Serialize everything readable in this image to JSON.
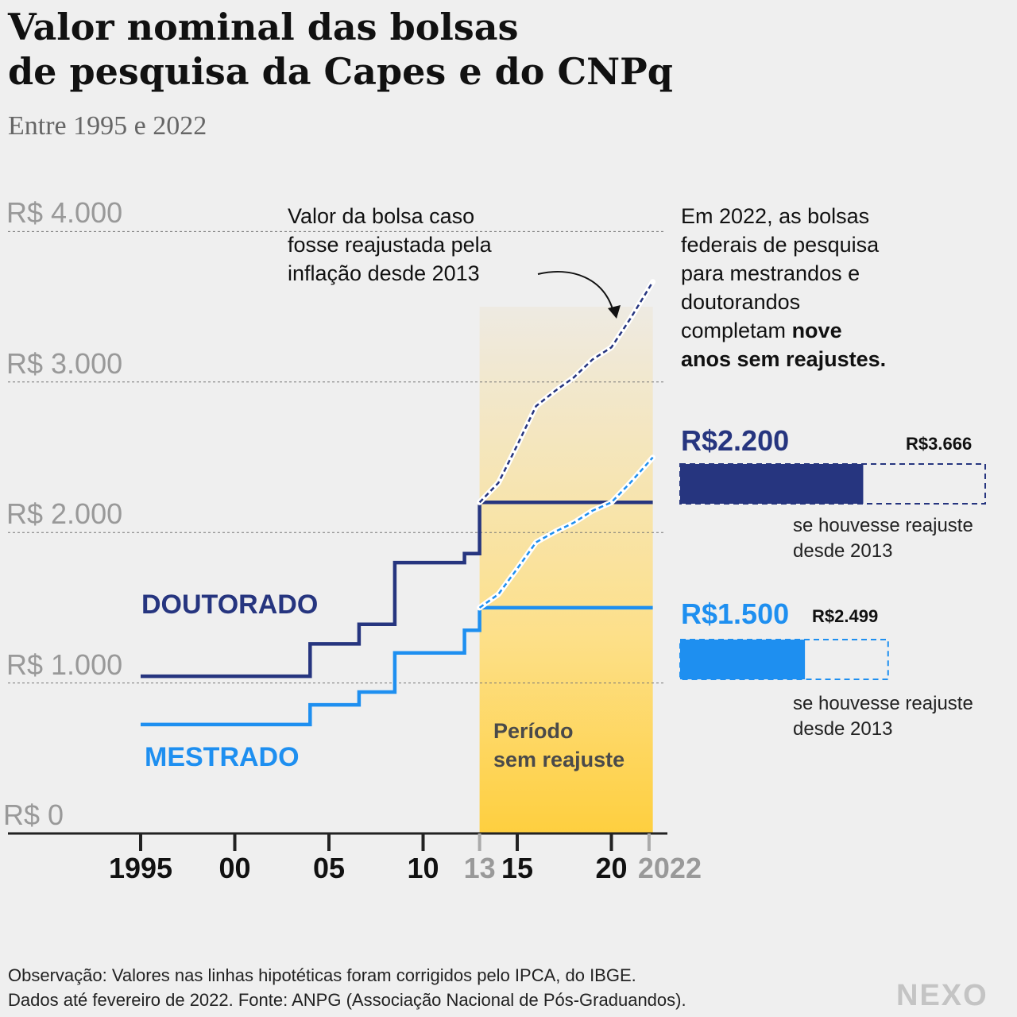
{
  "title_line1": "Valor nominal das bolsas",
  "title_line2": "de pesquisa da Capes e do CNPq",
  "subtitle": "Entre 1995 e 2022",
  "annotation": {
    "line1": "Valor da bolsa caso",
    "line2": "fosse reajustada pela",
    "line3": "inflação desde 2013"
  },
  "side_note": {
    "line1": "Em 2022, as bolsas",
    "line2": "federais de pesquisa",
    "line3": "para mestrandos e",
    "line4": "doutorandos",
    "line5_normal": "completam ",
    "line5_bold": "nove",
    "line6_bold": "anos sem reajustes."
  },
  "labels": {
    "doutorado": "DOUTORADO",
    "mestrado": "MESTRADO",
    "period_line1": "Período",
    "period_line2": "sem reajuste"
  },
  "comparison": {
    "doutorado": {
      "value_label": "R$2.200",
      "adjusted_label": "R$3.666",
      "value": 2200,
      "adjusted": 3666,
      "note1": "se houvesse reajuste",
      "note2": "desde 2013"
    },
    "mestrado": {
      "value_label": "R$1.500",
      "adjusted_label": "R$2.499",
      "value": 1500,
      "adjusted": 2499,
      "note1": "se houvesse reajuste",
      "note2": "desde 2013"
    }
  },
  "footer_line1": "Observação: Valores nas linhas hipotéticas foram corrigidos pelo IPCA, do IBGE.",
  "footer_line2": "Dados até fevereiro de 2022. Fonte: ANPG (Associação Nacional de Pós-Graduandos).",
  "logo": "NEXO",
  "colors": {
    "doutorado": "#26357f",
    "mestrado": "#1e8ff0",
    "period_top": "#eeeae2",
    "period_bottom": "#fecf3f",
    "grid": "#777777",
    "axis": "#222222"
  },
  "chart_data": {
    "type": "line",
    "title": "Valor nominal das bolsas de pesquisa da Capes e do CNPq",
    "subtitle": "Entre 1995 e 2022",
    "y_ticks": [
      {
        "value": 0,
        "label": "R$ 0"
      },
      {
        "value": 1000,
        "label": "R$ 1.000"
      },
      {
        "value": 2000,
        "label": "R$ 2.000"
      },
      {
        "value": 3000,
        "label": "R$ 3.000"
      },
      {
        "value": 4000,
        "label": "R$ 4.000"
      }
    ],
    "x_ticks": [
      {
        "value": 1995,
        "label": "1995",
        "muted": false
      },
      {
        "value": 2000,
        "label": "00",
        "muted": false
      },
      {
        "value": 2005,
        "label": "05",
        "muted": false
      },
      {
        "value": 2010,
        "label": "10",
        "muted": false
      },
      {
        "value": 2013,
        "label": "13",
        "muted": true
      },
      {
        "value": 2015,
        "label": "15",
        "muted": false
      },
      {
        "value": 2020,
        "label": "20",
        "muted": false
      },
      {
        "value": 2022,
        "label": "2022",
        "muted": true
      }
    ],
    "xlim": [
      1995,
      2022.2
    ],
    "ylim": [
      0,
      4000
    ],
    "highlight_period": [
      2013,
      2022.2
    ],
    "series": [
      {
        "name": "DOUTORADO",
        "style": "step",
        "points": [
          [
            1995,
            1045
          ],
          [
            2004,
            1045
          ],
          [
            2004,
            1260
          ],
          [
            2006.6,
            1260
          ],
          [
            2006.6,
            1390
          ],
          [
            2008.5,
            1390
          ],
          [
            2008.5,
            1800
          ],
          [
            2012.2,
            1800
          ],
          [
            2012.2,
            1860
          ],
          [
            2013,
            1860
          ],
          [
            2013,
            2200
          ],
          [
            2022.2,
            2200
          ]
        ]
      },
      {
        "name": "MESTRADO",
        "style": "step",
        "points": [
          [
            1995,
            724
          ],
          [
            2004,
            724
          ],
          [
            2004,
            855
          ],
          [
            2006.6,
            855
          ],
          [
            2006.6,
            940
          ],
          [
            2008.5,
            940
          ],
          [
            2008.5,
            1200
          ],
          [
            2012.2,
            1200
          ],
          [
            2012.2,
            1350
          ],
          [
            2013,
            1350
          ],
          [
            2013,
            1500
          ],
          [
            2022.2,
            1500
          ]
        ]
      },
      {
        "name": "",
        "style": "dashed",
        "points": [
          [
            2013,
            2200
          ],
          [
            2014,
            2330
          ],
          [
            2015,
            2580
          ],
          [
            2016,
            2840
          ],
          [
            2017,
            2940
          ],
          [
            2018,
            3030
          ],
          [
            2019,
            3150
          ],
          [
            2020,
            3230
          ],
          [
            2021,
            3420
          ],
          [
            2022.2,
            3666
          ]
        ]
      },
      {
        "name": "",
        "style": "dashed",
        "points": [
          [
            2013,
            1500
          ],
          [
            2014,
            1590
          ],
          [
            2015,
            1760
          ],
          [
            2016,
            1935
          ],
          [
            2017,
            2005
          ],
          [
            2018,
            2065
          ],
          [
            2019,
            2145
          ],
          [
            2020,
            2200
          ],
          [
            2021,
            2330
          ],
          [
            2022.2,
            2499
          ]
        ]
      }
    ]
  }
}
